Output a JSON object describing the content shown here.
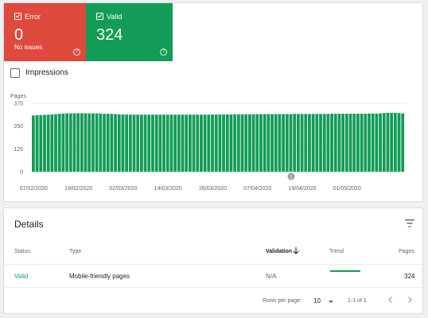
{
  "tiles": {
    "error": {
      "label": "Error",
      "value": "0",
      "sub": "No issues",
      "help": "?",
      "color": "#df4a3c"
    },
    "valid": {
      "label": "Valid",
      "value": "324",
      "help": "?",
      "color": "#139c57"
    }
  },
  "impressions": {
    "label": "Impressions",
    "checked": false
  },
  "chart_data": {
    "type": "bar",
    "title": "",
    "ylabel": "Pages",
    "xlabel": "",
    "ylim": [
      0,
      375
    ],
    "yticks": [
      "375",
      "250",
      "125",
      "0"
    ],
    "xticks": [
      "07/02/2020",
      "19/02/2020",
      "02/03/2020",
      "14/03/2020",
      "26/03/2020",
      "07/04/2020",
      "19/04/2020",
      "01/05/2020"
    ],
    "annotation": "1",
    "grid": true,
    "color": "#139c57",
    "start_date": "2020-02-07",
    "values": [
      308,
      310,
      311,
      312,
      313,
      314,
      316,
      318,
      319,
      320,
      320,
      320,
      321,
      321,
      320,
      320,
      320,
      320,
      319,
      318,
      318,
      317,
      316,
      315,
      314,
      314,
      313,
      313,
      313,
      313,
      313,
      313,
      313,
      313,
      313,
      313,
      313,
      313,
      313,
      313,
      313,
      313,
      313,
      313,
      313,
      313,
      313,
      313,
      314,
      314,
      314,
      314,
      314,
      314,
      315,
      315,
      315,
      315,
      315,
      315,
      316,
      316,
      316,
      316,
      316,
      316,
      316,
      316,
      316,
      316,
      317,
      317,
      317,
      317,
      317,
      317,
      317,
      317,
      317,
      317,
      318,
      318,
      318,
      318,
      318,
      318,
      318,
      318,
      318,
      318,
      319,
      319,
      319,
      320,
      322,
      323,
      323,
      323,
      322,
      320
    ]
  },
  "details": {
    "title": "Details",
    "columns": {
      "status": "Status",
      "type": "Type",
      "validation": "Validation",
      "trend": "Trend",
      "pages": "Pages"
    },
    "row": {
      "status": "Valid",
      "type": "Mobile-friendly pages",
      "validation": "N/A",
      "pages": "324"
    },
    "footer": {
      "rows_per_page_label": "Rows per page:",
      "rows_per_page_value": "10",
      "range": "1-1 of 1"
    }
  }
}
